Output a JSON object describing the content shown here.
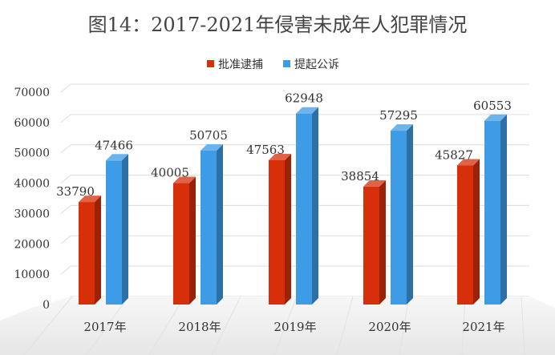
{
  "chart_data": {
    "type": "bar",
    "title": "图14：2017-2021年侵害未成年人犯罪情况",
    "categories": [
      "2017年",
      "2018年",
      "2019年",
      "2020年",
      "2021年"
    ],
    "series": [
      {
        "name": "批准逮捕",
        "color": "#d62f0a",
        "values": [
          33790,
          40005,
          47563,
          38854,
          45827
        ]
      },
      {
        "name": "提起公诉",
        "color": "#3e9be6",
        "values": [
          47466,
          50705,
          62948,
          57295,
          60553
        ]
      }
    ],
    "y_ticks": [
      "70000",
      "60000",
      "50000",
      "40000",
      "30000",
      "20000",
      "10000",
      "0"
    ],
    "ylim": [
      0,
      70000
    ],
    "legend_position": "top-center",
    "grid": true
  }
}
